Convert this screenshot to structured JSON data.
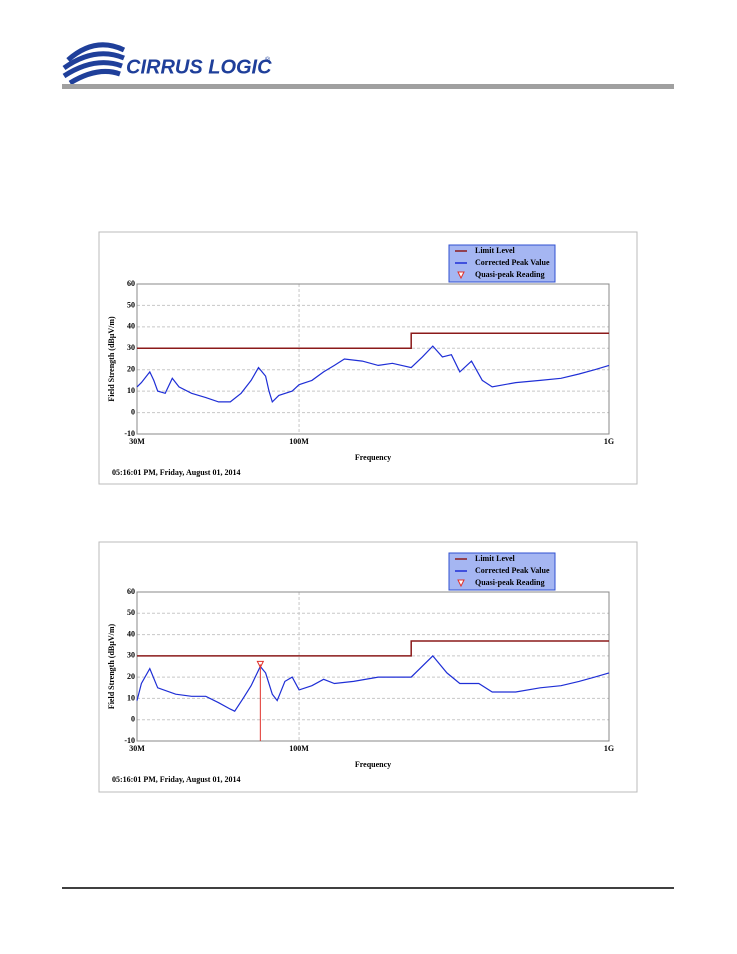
{
  "header": {
    "logo": "CIRRUS LOGIC",
    "mark": "®"
  },
  "chart_data": [
    {
      "type": "line",
      "legend_title": null,
      "ylabel": "Field Strength (dBµV/m)",
      "xlabel": "Frequency",
      "footnote": "05:16:01 PM, Friday, August 01, 2014",
      "log_x": true,
      "grid": true,
      "xlim": [
        30000000,
        1000000000
      ],
      "ylim": [
        -10,
        60
      ],
      "xticks": [
        {
          "value": 30000000,
          "label": "30M"
        },
        {
          "value": 100000000,
          "label": "100M"
        },
        {
          "value": 1000000000,
          "label": "1G"
        }
      ],
      "yticks": [
        -10,
        0,
        10,
        20,
        30,
        40,
        50,
        60
      ],
      "series": [
        {
          "name": "Limit Level",
          "color": "#8b1a1a",
          "x": [
            30000000,
            230000000,
            230000000,
            1000000000
          ],
          "values": [
            30,
            30,
            37,
            37
          ]
        },
        {
          "name": "Corrected Peak Value",
          "color": "#1f2fd6",
          "x": [
            30000000,
            31000000,
            33000000,
            34000000,
            35000000,
            37000000,
            39000000,
            41000000,
            45000000,
            50000000,
            55000000,
            60000000,
            65000000,
            70000000,
            74000000,
            78000000,
            80000000,
            82000000,
            86000000,
            95000000,
            100000000,
            110000000,
            120000000,
            130000000,
            140000000,
            160000000,
            180000000,
            200000000,
            230000000,
            250000000,
            270000000,
            290000000,
            310000000,
            330000000,
            360000000,
            390000000,
            420000000,
            500000000,
            600000000,
            700000000,
            800000000,
            900000000,
            1000000000
          ],
          "values": [
            12,
            14,
            19,
            15,
            10,
            9,
            16,
            12,
            9,
            7,
            5,
            5,
            9,
            15,
            21,
            17,
            10,
            5,
            8,
            10,
            13,
            15,
            19,
            22,
            25,
            24,
            22,
            23,
            21,
            26,
            31,
            26,
            27,
            19,
            24,
            15,
            12,
            14,
            15,
            16,
            18,
            20,
            22
          ]
        },
        {
          "name": "Quasi-peak Reading",
          "color": "#e0302a",
          "x": [],
          "values": []
        }
      ]
    },
    {
      "type": "line",
      "legend_title": null,
      "ylabel": "Field Strength (dBµV/m)",
      "xlabel": "Frequency",
      "footnote": "05:16:01 PM, Friday, August 01, 2014",
      "log_x": true,
      "grid": true,
      "xlim": [
        30000000,
        1000000000
      ],
      "ylim": [
        -10,
        60
      ],
      "xticks": [
        {
          "value": 30000000,
          "label": "30M"
        },
        {
          "value": 100000000,
          "label": "100M"
        },
        {
          "value": 1000000000,
          "label": "1G"
        }
      ],
      "yticks": [
        -10,
        0,
        10,
        20,
        30,
        40,
        50,
        60
      ],
      "series": [
        {
          "name": "Limit Level",
          "color": "#8b1a1a",
          "x": [
            30000000,
            230000000,
            230000000,
            1000000000
          ],
          "values": [
            30,
            30,
            37,
            37
          ]
        },
        {
          "name": "Corrected Peak Value",
          "color": "#1f2fd6",
          "x": [
            30000000,
            31000000,
            33000000,
            35000000,
            40000000,
            45000000,
            50000000,
            55000000,
            60000000,
            62000000,
            66000000,
            70000000,
            75000000,
            78000000,
            82000000,
            85000000,
            90000000,
            95000000,
            100000000,
            110000000,
            120000000,
            130000000,
            150000000,
            180000000,
            230000000,
            270000000,
            300000000,
            330000000,
            380000000,
            420000000,
            500000000,
            600000000,
            700000000,
            800000000,
            900000000,
            1000000000
          ],
          "values": [
            9,
            17,
            24,
            15,
            12,
            11,
            11,
            8,
            5,
            4,
            10,
            16,
            25,
            22,
            12,
            9,
            18,
            20,
            14,
            16,
            19,
            17,
            18,
            20,
            20,
            30,
            22,
            17,
            17,
            13,
            13,
            15,
            16,
            18,
            20,
            22
          ]
        },
        {
          "name": "Quasi-peak Reading",
          "color": "#e0302a",
          "x": [
            75000000
          ],
          "values": [
            26
          ]
        }
      ]
    }
  ]
}
